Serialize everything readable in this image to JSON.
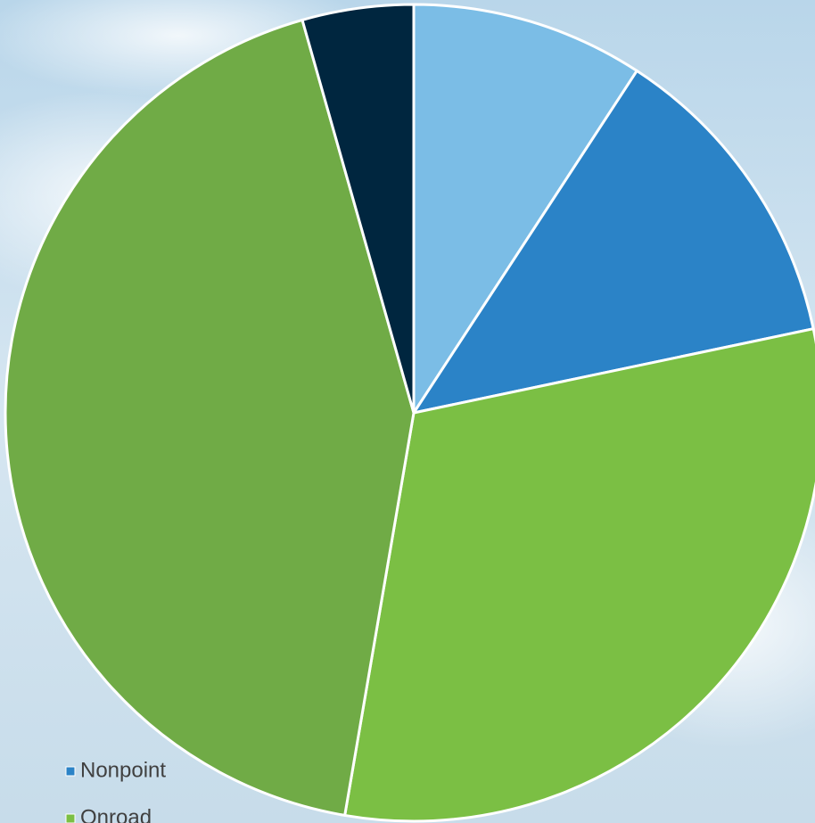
{
  "chart_data": {
    "type": "pie",
    "categories": [
      null,
      "Nonpoint",
      "Onroad",
      null,
      null
    ],
    "values": [
      9.2,
      12.5,
      31,
      42.9,
      4.4
    ],
    "colors": [
      "#7bbde6",
      "#2b83c7",
      "#7bbf44",
      "#70ab46",
      "#00263f"
    ],
    "legend": "bottom-left"
  }
}
